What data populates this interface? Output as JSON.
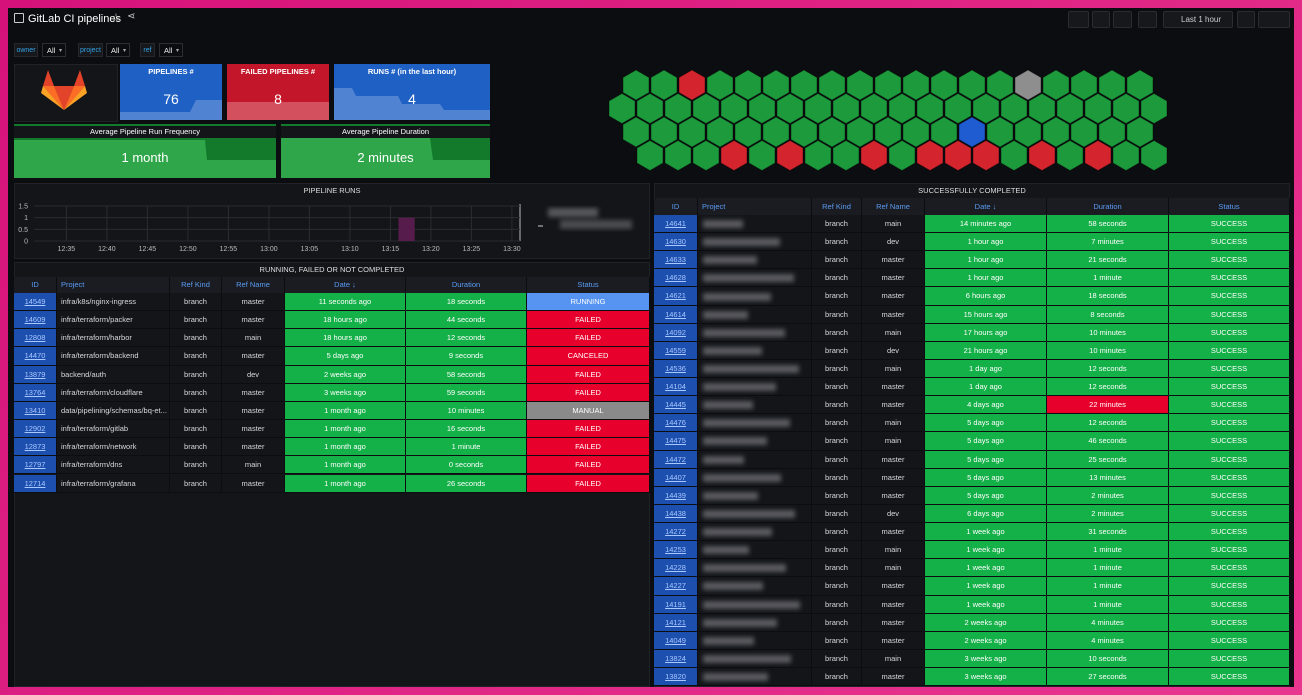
{
  "header": {
    "title": "GitLab CI pipelines",
    "time_range": "Last 1 hour"
  },
  "variables": [
    {
      "name": "owner",
      "value": "All"
    },
    {
      "name": "project",
      "value": "All"
    },
    {
      "name": "ref",
      "value": "All"
    }
  ],
  "stats": [
    {
      "title": "PIPELINES #",
      "value": 76,
      "color": "#1f60c4"
    },
    {
      "title": "FAILED PIPELINES #",
      "value": 8,
      "color": "#c4162a"
    },
    {
      "title": "RUNS # (in the last hour)",
      "value": 4,
      "color": "#1f60c4"
    }
  ],
  "averages": [
    {
      "title": "Average Pipeline Run Frequency",
      "value": "1 month"
    },
    {
      "title": "Average Pipeline Duration",
      "value": "2 minutes"
    }
  ],
  "honeycomb": {
    "colors": {
      "g": "#1c9a3c",
      "r": "#d4252f",
      "b": "#1f5cd1",
      "n": "#8e8e8e"
    },
    "rows": [
      "ggrgggggggggggngggg",
      "gggggggggggggggggggg",
      "ggggggggggggbgggggg",
      "gggrgrggrgrrrgrgrgg"
    ]
  },
  "pipeline_runs": {
    "title": "PIPELINE RUNS",
    "ylim": [
      0,
      1.5
    ],
    "yticks": [
      1.5,
      1,
      0.5,
      0
    ],
    "xlim": [
      "12:31",
      "13:31"
    ],
    "xticks": [
      "12:35",
      "12:40",
      "12:45",
      "12:50",
      "12:55",
      "13:00",
      "13:05",
      "13:10",
      "13:15",
      "13:20",
      "13:25",
      "13:30"
    ],
    "bars": [
      {
        "start": "13:16",
        "end": "13:18",
        "value": 1,
        "color": "#561d4c"
      }
    ]
  },
  "failed_table": {
    "title": "RUNNING, FAILED OR NOT COMPLETED",
    "columns": [
      "ID",
      "Project",
      "Ref Kind",
      "Ref Name",
      "Date ↓",
      "Duration",
      "Status"
    ],
    "cell_color": "#14b048",
    "rows": [
      [
        "14549",
        "infra/k8s/nginx-ingress",
        "branch",
        "master",
        "11 seconds ago",
        "18 seconds",
        "RUNNING"
      ],
      [
        "14609",
        "infra/terraform/packer",
        "branch",
        "master",
        "18 hours ago",
        "44 seconds",
        "FAILED"
      ],
      [
        "12808",
        "infra/terraform/harbor",
        "branch",
        "main",
        "18 hours ago",
        "12 seconds",
        "FAILED"
      ],
      [
        "14470",
        "infra/terraform/backend",
        "branch",
        "master",
        "5 days ago",
        "9 seconds",
        "CANCELED"
      ],
      [
        "13879",
        "backend/auth",
        "branch",
        "dev",
        "2 weeks ago",
        "58 seconds",
        "FAILED"
      ],
      [
        "13764",
        "infra/terraform/cloudflare",
        "branch",
        "master",
        "3 weeks ago",
        "59 seconds",
        "FAILED"
      ],
      [
        "13410",
        "data/pipelining/schemas/bq-et...",
        "branch",
        "master",
        "1 month ago",
        "10 minutes",
        "MANUAL"
      ],
      [
        "12902",
        "infra/terraform/gitlab",
        "branch",
        "master",
        "1 month ago",
        "16 seconds",
        "FAILED"
      ],
      [
        "12873",
        "infra/terraform/network",
        "branch",
        "master",
        "1 month ago",
        "1 minute",
        "FAILED"
      ],
      [
        "12797",
        "infra/terraform/dns",
        "branch",
        "main",
        "1 month ago",
        "0 seconds",
        "FAILED"
      ],
      [
        "12714",
        "infra/terraform/grafana",
        "branch",
        "master",
        "1 month ago",
        "26 seconds",
        "FAILED"
      ]
    ],
    "status_colors": [
      "#5794f2",
      "#e8002d",
      "#e8002d",
      "#e8002d",
      "#e8002d",
      "#e8002d",
      "#8a8a8a",
      "#e8002d",
      "#e8002d",
      "#e8002d",
      "#e8002d"
    ]
  },
  "success_table": {
    "title": "SUCCESSFULLY COMPLETED",
    "columns": [
      "ID",
      "Project",
      "Ref Kind",
      "Ref Name",
      "Date ↓",
      "Duration",
      "Status"
    ],
    "cell_color": "#14b048",
    "status_color": "#14b048",
    "rows": [
      [
        "14641",
        null,
        "branch",
        "main",
        "14 minutes ago",
        "58 seconds",
        "SUCCESS"
      ],
      [
        "14630",
        null,
        "branch",
        "dev",
        "1 hour ago",
        "7 minutes",
        "SUCCESS"
      ],
      [
        "14633",
        null,
        "branch",
        "master",
        "1 hour ago",
        "21 seconds",
        "SUCCESS"
      ],
      [
        "14628",
        null,
        "branch",
        "master",
        "1 hour ago",
        "1 minute",
        "SUCCESS"
      ],
      [
        "14621",
        null,
        "branch",
        "master",
        "6 hours ago",
        "18 seconds",
        "SUCCESS"
      ],
      [
        "14614",
        null,
        "branch",
        "master",
        "15 hours ago",
        "8 seconds",
        "SUCCESS"
      ],
      [
        "14092",
        null,
        "branch",
        "main",
        "17 hours ago",
        "10 minutes",
        "SUCCESS"
      ],
      [
        "14559",
        null,
        "branch",
        "dev",
        "21 hours ago",
        "10 minutes",
        "SUCCESS"
      ],
      [
        "14536",
        null,
        "branch",
        "main",
        "1 day ago",
        "12 seconds",
        "SUCCESS"
      ],
      [
        "14104",
        null,
        "branch",
        "master",
        "1 day ago",
        "12 seconds",
        "SUCCESS"
      ],
      [
        "14445",
        null,
        "branch",
        "master",
        "4 days ago",
        "22 minutes",
        "SUCCESS"
      ],
      [
        "14476",
        null,
        "branch",
        "main",
        "5 days ago",
        "12 seconds",
        "SUCCESS"
      ],
      [
        "14475",
        null,
        "branch",
        "main",
        "5 days ago",
        "46 seconds",
        "SUCCESS"
      ],
      [
        "14472",
        null,
        "branch",
        "master",
        "5 days ago",
        "25 seconds",
        "SUCCESS"
      ],
      [
        "14407",
        null,
        "branch",
        "master",
        "5 days ago",
        "13 minutes",
        "SUCCESS"
      ],
      [
        "14439",
        null,
        "branch",
        "master",
        "5 days ago",
        "2 minutes",
        "SUCCESS"
      ],
      [
        "14438",
        null,
        "branch",
        "dev",
        "6 days ago",
        "2 minutes",
        "SUCCESS"
      ],
      [
        "14272",
        null,
        "branch",
        "master",
        "1 week ago",
        "31 seconds",
        "SUCCESS"
      ],
      [
        "14253",
        null,
        "branch",
        "main",
        "1 week ago",
        "1 minute",
        "SUCCESS"
      ],
      [
        "14228",
        null,
        "branch",
        "main",
        "1 week ago",
        "1 minute",
        "SUCCESS"
      ],
      [
        "14227",
        null,
        "branch",
        "master",
        "1 week ago",
        "1 minute",
        "SUCCESS"
      ],
      [
        "14191",
        null,
        "branch",
        "master",
        "1 week ago",
        "1 minute",
        "SUCCESS"
      ],
      [
        "14121",
        null,
        "branch",
        "master",
        "2 weeks ago",
        "4 minutes",
        "SUCCESS"
      ],
      [
        "14049",
        null,
        "branch",
        "master",
        "2 weeks ago",
        "4 minutes",
        "SUCCESS"
      ],
      [
        "13824",
        null,
        "branch",
        "main",
        "3 weeks ago",
        "10 seconds",
        "SUCCESS"
      ],
      [
        "13820",
        null,
        "branch",
        "master",
        "3 weeks ago",
        "27 seconds",
        "SUCCESS"
      ]
    ],
    "duration_colors": [
      "#14b048",
      "#14b048",
      "#14b048",
      "#14b048",
      "#14b048",
      "#14b048",
      "#14b048",
      "#14b048",
      "#14b048",
      "#14b048",
      "#e8002d",
      "#14b048",
      "#14b048",
      "#14b048",
      "#14b048",
      "#14b048",
      "#14b048",
      "#14b048",
      "#14b048",
      "#14b048",
      "#14b048",
      "#14b048",
      "#14b048",
      "#14b048",
      "#14b048",
      "#14b048"
    ]
  }
}
